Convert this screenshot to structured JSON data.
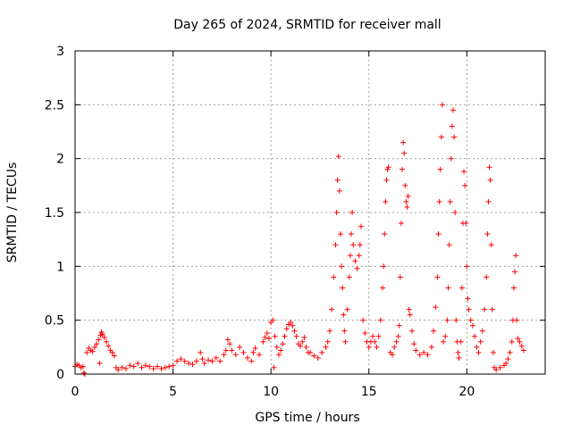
{
  "chart_data": {
    "type": "scatter",
    "title": "Day 265 of 2024, SRMTID for receiver mall",
    "xlabel": "GPS time / hours",
    "ylabel": "SRMTID / TECUs",
    "xlim": [
      0,
      24
    ],
    "ylim": [
      0,
      3
    ],
    "xticks": [
      0,
      5,
      10,
      15,
      20
    ],
    "xtick_labels": [
      "0",
      "5",
      "10",
      "15",
      "20"
    ],
    "yticks": [
      0,
      0.5,
      1,
      1.5,
      2,
      2.5,
      3
    ],
    "ytick_labels": [
      "0",
      "0.5",
      "1",
      "1.5",
      "2",
      "2.5",
      "3"
    ],
    "grid": true,
    "marker": "+",
    "colors": {
      "series": "#ff0000",
      "grid": "#a0a0a0",
      "axis": "#000000"
    },
    "series": [
      {
        "name": "SRMTID",
        "points": [
          [
            0.0,
            0.07
          ],
          [
            0.1,
            0.09
          ],
          [
            0.2,
            0.08
          ],
          [
            0.3,
            0.06
          ],
          [
            0.4,
            0.07
          ],
          [
            0.45,
            0.01
          ],
          [
            0.5,
            0.0
          ],
          [
            0.6,
            0.2
          ],
          [
            0.7,
            0.24
          ],
          [
            0.8,
            0.22
          ],
          [
            0.9,
            0.21
          ],
          [
            1.0,
            0.25
          ],
          [
            1.1,
            0.28
          ],
          [
            1.2,
            0.32
          ],
          [
            1.25,
            0.1
          ],
          [
            1.3,
            0.36
          ],
          [
            1.35,
            0.39
          ],
          [
            1.4,
            0.37
          ],
          [
            1.5,
            0.34
          ],
          [
            1.6,
            0.3
          ],
          [
            1.7,
            0.26
          ],
          [
            1.8,
            0.22
          ],
          [
            1.9,
            0.2
          ],
          [
            2.0,
            0.17
          ],
          [
            2.1,
            0.06
          ],
          [
            2.2,
            0.04
          ],
          [
            2.4,
            0.06
          ],
          [
            2.6,
            0.05
          ],
          [
            2.8,
            0.08
          ],
          [
            3.0,
            0.07
          ],
          [
            3.2,
            0.1
          ],
          [
            3.4,
            0.06
          ],
          [
            3.6,
            0.08
          ],
          [
            3.8,
            0.07
          ],
          [
            4.0,
            0.05
          ],
          [
            4.2,
            0.07
          ],
          [
            4.4,
            0.05
          ],
          [
            4.6,
            0.06
          ],
          [
            4.8,
            0.07
          ],
          [
            5.0,
            0.08
          ],
          [
            5.2,
            0.12
          ],
          [
            5.4,
            0.14
          ],
          [
            5.6,
            0.12
          ],
          [
            5.8,
            0.1
          ],
          [
            6.0,
            0.09
          ],
          [
            6.2,
            0.12
          ],
          [
            6.4,
            0.2
          ],
          [
            6.5,
            0.14
          ],
          [
            6.6,
            0.1
          ],
          [
            6.8,
            0.13
          ],
          [
            7.0,
            0.12
          ],
          [
            7.2,
            0.15
          ],
          [
            7.4,
            0.12
          ],
          [
            7.6,
            0.18
          ],
          [
            7.7,
            0.22
          ],
          [
            7.8,
            0.32
          ],
          [
            7.9,
            0.28
          ],
          [
            8.0,
            0.22
          ],
          [
            8.2,
            0.18
          ],
          [
            8.4,
            0.25
          ],
          [
            8.6,
            0.2
          ],
          [
            8.8,
            0.15
          ],
          [
            9.0,
            0.12
          ],
          [
            9.1,
            0.2
          ],
          [
            9.2,
            0.24
          ],
          [
            9.4,
            0.18
          ],
          [
            9.6,
            0.3
          ],
          [
            9.7,
            0.34
          ],
          [
            9.8,
            0.38
          ],
          [
            9.9,
            0.33
          ],
          [
            10.0,
            0.48
          ],
          [
            10.1,
            0.5
          ],
          [
            10.15,
            0.06
          ],
          [
            10.2,
            0.35
          ],
          [
            10.3,
            0.25
          ],
          [
            10.4,
            0.18
          ],
          [
            10.5,
            0.22
          ],
          [
            10.6,
            0.28
          ],
          [
            10.7,
            0.35
          ],
          [
            10.8,
            0.42
          ],
          [
            10.9,
            0.46
          ],
          [
            11.0,
            0.48
          ],
          [
            11.1,
            0.45
          ],
          [
            11.2,
            0.4
          ],
          [
            11.3,
            0.35
          ],
          [
            11.4,
            0.28
          ],
          [
            11.5,
            0.26
          ],
          [
            11.6,
            0.3
          ],
          [
            11.7,
            0.34
          ],
          [
            11.8,
            0.25
          ],
          [
            11.9,
            0.2
          ],
          [
            12.0,
            0.2
          ],
          [
            12.2,
            0.17
          ],
          [
            12.4,
            0.15
          ],
          [
            12.6,
            0.2
          ],
          [
            12.8,
            0.25
          ],
          [
            12.9,
            0.3
          ],
          [
            13.0,
            0.4
          ],
          [
            13.1,
            0.6
          ],
          [
            13.2,
            0.9
          ],
          [
            13.3,
            1.2
          ],
          [
            13.35,
            1.5
          ],
          [
            13.4,
            1.8
          ],
          [
            13.45,
            2.02
          ],
          [
            13.5,
            1.7
          ],
          [
            13.55,
            1.3
          ],
          [
            13.6,
            1.0
          ],
          [
            13.65,
            0.8
          ],
          [
            13.7,
            0.55
          ],
          [
            13.75,
            0.4
          ],
          [
            13.8,
            0.3
          ],
          [
            13.9,
            0.6
          ],
          [
            14.0,
            0.9
          ],
          [
            14.05,
            1.1
          ],
          [
            14.1,
            1.3
          ],
          [
            14.15,
            1.5
          ],
          [
            14.2,
            1.2
          ],
          [
            14.3,
            1.05
          ],
          [
            14.4,
            0.98
          ],
          [
            14.5,
            1.1
          ],
          [
            14.55,
            1.2
          ],
          [
            14.6,
            1.37
          ],
          [
            14.7,
            0.5
          ],
          [
            14.8,
            0.38
          ],
          [
            14.9,
            0.3
          ],
          [
            15.0,
            0.25
          ],
          [
            15.1,
            0.3
          ],
          [
            15.2,
            0.35
          ],
          [
            15.3,
            0.3
          ],
          [
            15.4,
            0.25
          ],
          [
            15.5,
            0.35
          ],
          [
            15.6,
            0.5
          ],
          [
            15.7,
            0.8
          ],
          [
            15.75,
            1.0
          ],
          [
            15.8,
            1.3
          ],
          [
            15.85,
            1.6
          ],
          [
            15.9,
            1.8
          ],
          [
            15.95,
            1.9
          ],
          [
            16.0,
            1.92
          ],
          [
            16.1,
            0.2
          ],
          [
            16.2,
            0.18
          ],
          [
            16.3,
            0.25
          ],
          [
            16.4,
            0.3
          ],
          [
            16.5,
            0.35
          ],
          [
            16.55,
            0.45
          ],
          [
            16.6,
            0.9
          ],
          [
            16.65,
            1.4
          ],
          [
            16.7,
            1.9
          ],
          [
            16.75,
            2.15
          ],
          [
            16.8,
            2.05
          ],
          [
            16.85,
            1.75
          ],
          [
            16.9,
            1.6
          ],
          [
            16.95,
            1.55
          ],
          [
            17.0,
            1.65
          ],
          [
            17.05,
            0.6
          ],
          [
            17.1,
            0.55
          ],
          [
            17.2,
            0.4
          ],
          [
            17.3,
            0.28
          ],
          [
            17.4,
            0.22
          ],
          [
            17.6,
            0.18
          ],
          [
            17.8,
            0.2
          ],
          [
            18.0,
            0.18
          ],
          [
            18.2,
            0.25
          ],
          [
            18.3,
            0.4
          ],
          [
            18.4,
            0.62
          ],
          [
            18.5,
            0.9
          ],
          [
            18.55,
            1.3
          ],
          [
            18.6,
            1.6
          ],
          [
            18.65,
            1.9
          ],
          [
            18.7,
            2.2
          ],
          [
            18.75,
            2.5
          ],
          [
            18.8,
            0.3
          ],
          [
            18.9,
            0.35
          ],
          [
            19.0,
            0.5
          ],
          [
            19.05,
            0.8
          ],
          [
            19.1,
            1.2
          ],
          [
            19.15,
            1.6
          ],
          [
            19.2,
            2.0
          ],
          [
            19.25,
            2.3
          ],
          [
            19.3,
            2.45
          ],
          [
            19.35,
            2.2
          ],
          [
            19.4,
            1.5
          ],
          [
            19.45,
            0.5
          ],
          [
            19.5,
            0.3
          ],
          [
            19.55,
            0.2
          ],
          [
            19.6,
            0.15
          ],
          [
            19.7,
            0.3
          ],
          [
            19.75,
            0.8
          ],
          [
            19.8,
            1.4
          ],
          [
            19.85,
            1.88
          ],
          [
            19.9,
            1.75
          ],
          [
            19.95,
            1.4
          ],
          [
            20.0,
            1.0
          ],
          [
            20.05,
            0.7
          ],
          [
            20.1,
            0.6
          ],
          [
            20.2,
            0.5
          ],
          [
            20.3,
            0.45
          ],
          [
            20.4,
            0.35
          ],
          [
            20.5,
            0.25
          ],
          [
            20.6,
            0.2
          ],
          [
            20.7,
            0.3
          ],
          [
            20.8,
            0.4
          ],
          [
            20.9,
            0.6
          ],
          [
            21.0,
            0.9
          ],
          [
            21.05,
            1.3
          ],
          [
            21.1,
            1.6
          ],
          [
            21.15,
            1.92
          ],
          [
            21.2,
            1.8
          ],
          [
            21.25,
            1.2
          ],
          [
            21.3,
            0.6
          ],
          [
            21.35,
            0.2
          ],
          [
            21.4,
            0.06
          ],
          [
            21.5,
            0.04
          ],
          [
            21.7,
            0.06
          ],
          [
            21.9,
            0.08
          ],
          [
            22.0,
            0.1
          ],
          [
            22.1,
            0.14
          ],
          [
            22.2,
            0.2
          ],
          [
            22.3,
            0.3
          ],
          [
            22.35,
            0.5
          ],
          [
            22.4,
            0.8
          ],
          [
            22.45,
            0.95
          ],
          [
            22.5,
            1.1
          ],
          [
            22.55,
            0.5
          ],
          [
            22.6,
            0.33
          ],
          [
            22.7,
            0.3
          ],
          [
            22.8,
            0.26
          ],
          [
            22.9,
            0.22
          ]
        ]
      }
    ]
  }
}
